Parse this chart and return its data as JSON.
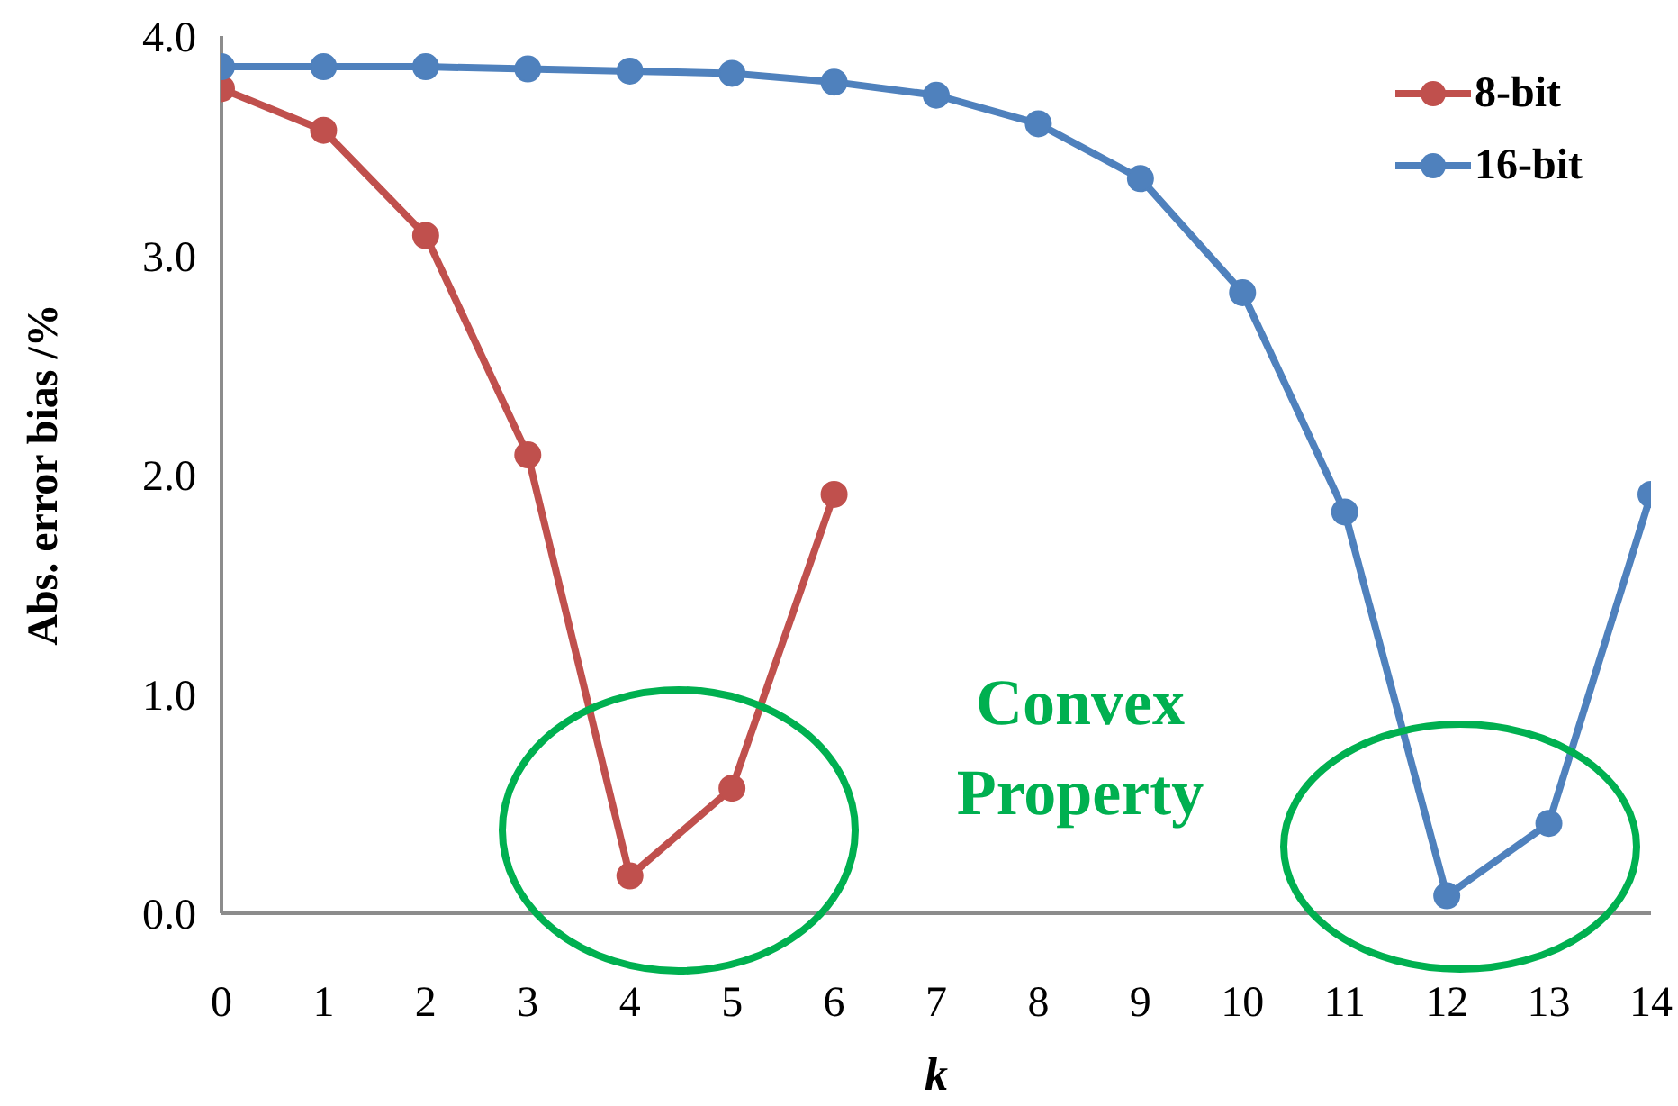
{
  "chart_data": {
    "type": "line",
    "xlabel": "k",
    "ylabel": "Abs. error bias /%",
    "x": [
      0,
      1,
      2,
      3,
      4,
      5,
      6,
      7,
      8,
      9,
      10,
      11,
      12,
      13,
      14
    ],
    "series": [
      {
        "name": "8-bit",
        "color": "#c0504d",
        "x": [
          0,
          1,
          2,
          3,
          4,
          5,
          6
        ],
        "values": [
          3.76,
          3.57,
          3.09,
          2.09,
          0.17,
          0.57,
          1.91
        ]
      },
      {
        "name": "16-bit",
        "color": "#4f81bd",
        "values": [
          3.86,
          3.86,
          3.86,
          3.85,
          3.84,
          3.83,
          3.79,
          3.73,
          3.6,
          3.35,
          2.83,
          1.83,
          0.08,
          0.41,
          1.91
        ]
      }
    ],
    "xlim": [
      0,
      14
    ],
    "xticks": [
      0,
      1,
      2,
      3,
      4,
      5,
      6,
      7,
      8,
      9,
      10,
      11,
      12,
      13,
      14
    ],
    "ylim": [
      0,
      4
    ],
    "yticks": [
      {
        "value": 0,
        "label": "0.0"
      },
      {
        "value": 1,
        "label": "1.0"
      },
      {
        "value": 2,
        "label": "2.0"
      },
      {
        "value": 3,
        "label": "3.0"
      },
      {
        "value": 4,
        "label": "4.0"
      }
    ],
    "annotations": [
      "Convex Property"
    ],
    "grid": false,
    "legend": "top right",
    "marker": "circle",
    "line_style": "solid"
  }
}
